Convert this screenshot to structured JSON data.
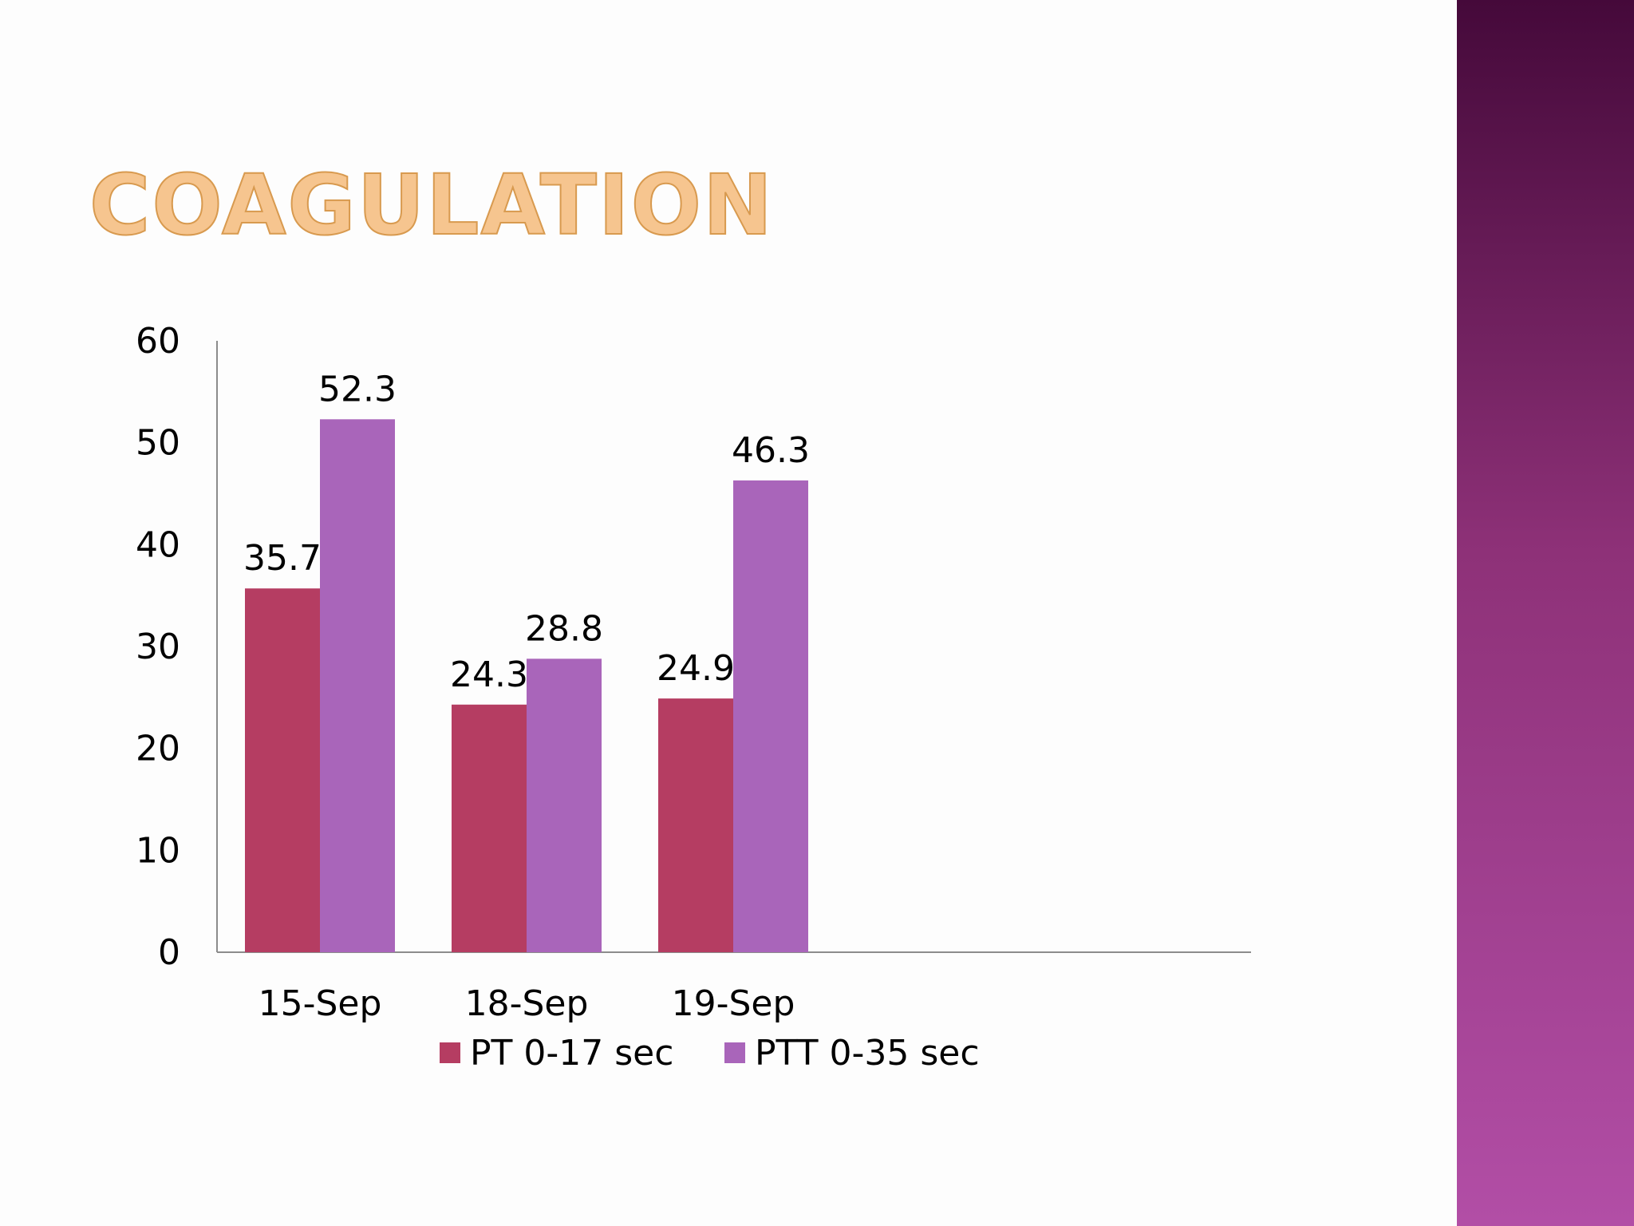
{
  "slide": {
    "title": "COAGULATION",
    "title_color": "#f6c58f",
    "band_colors": [
      "#45093a",
      "#8e3178",
      "#b24ea6"
    ]
  },
  "chart_data": {
    "type": "bar",
    "title": "",
    "xlabel": "",
    "ylabel": "",
    "categories": [
      "15-Sep",
      "18-Sep",
      "19-Sep"
    ],
    "series": [
      {
        "name": "PT 0-17 sec",
        "values": [
          35.7,
          24.3,
          24.9
        ],
        "color": "#b53d62"
      },
      {
        "name": "PTT 0-35 sec",
        "values": [
          52.3,
          28.8,
          46.3
        ],
        "color": "#a965ba"
      }
    ],
    "ylim": [
      0,
      60
    ],
    "yticks": [
      0,
      10,
      20,
      30,
      40,
      50,
      60
    ],
    "grid": false,
    "data_labels": true,
    "legend_position": "bottom"
  }
}
